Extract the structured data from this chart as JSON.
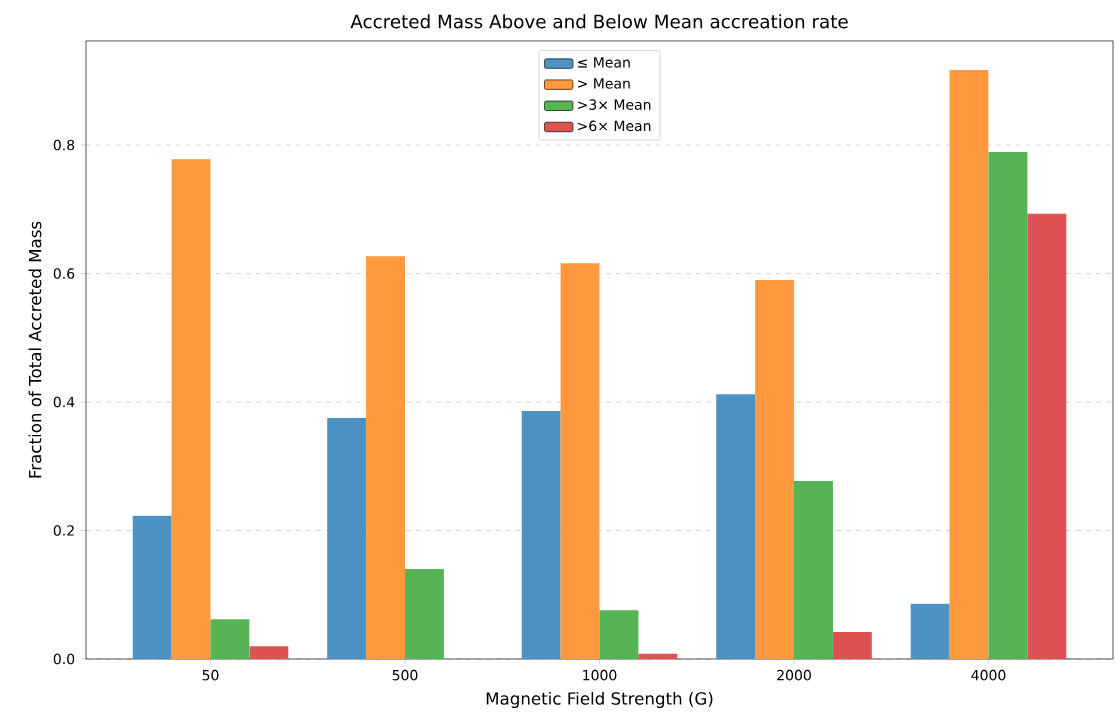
{
  "chart_data": {
    "type": "bar",
    "title": "Accreted Mass Above and Below Mean accreation rate",
    "xlabel": "Magnetic Field Strength (G)",
    "ylabel": "Fraction of Total Accreted Mass",
    "categories": [
      "50",
      "500",
      "1000",
      "2000",
      "4000"
    ],
    "series": [
      {
        "name": "≤ Mean",
        "color": "#4c92c3",
        "values": [
          0.223,
          0.375,
          0.386,
          0.412,
          0.086
        ]
      },
      {
        "name": "> Mean",
        "color": "#ff993e",
        "values": [
          0.778,
          0.627,
          0.616,
          0.59,
          0.917
        ]
      },
      {
        "name": ">3× Mean",
        "color": "#56b356",
        "values": [
          0.062,
          0.14,
          0.076,
          0.277,
          0.789
        ]
      },
      {
        "name": ">6× Mean",
        "color": "#de5253",
        "values": [
          0.02,
          0,
          0.008,
          0.042,
          0.693
        ]
      }
    ],
    "ylim": [
      0,
      0.962
    ],
    "yticks": [
      {
        "value": 0,
        "label": "0.0"
      },
      {
        "value": 0.2,
        "label": "0.2"
      },
      {
        "value": 0.4,
        "label": "0.4"
      },
      {
        "value": 0.6,
        "label": "0.6"
      },
      {
        "value": 0.8,
        "label": "0.8"
      }
    ],
    "grid": "y",
    "legend": "top"
  }
}
